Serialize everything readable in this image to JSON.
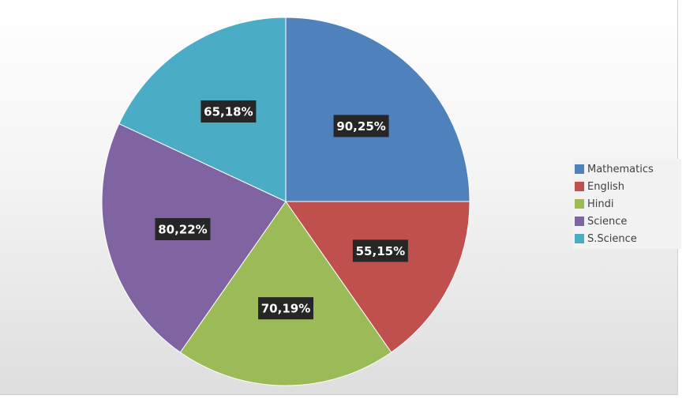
{
  "chart_data": {
    "type": "pie",
    "title": "",
    "start_angle_deg": 0,
    "direction": "clockwise",
    "slices": [
      {
        "name": "Mathematics",
        "value": 90.25,
        "label": "90,25%",
        "color": "#4f81bd"
      },
      {
        "name": "English",
        "value": 55.15,
        "label": "55,15%",
        "color": "#c0504d"
      },
      {
        "name": "Hindi",
        "value": 70.19,
        "label": "70,19%",
        "color": "#9bbb59"
      },
      {
        "name": "Science",
        "value": 80.22,
        "label": "80,22%",
        "color": "#8064a2"
      },
      {
        "name": "S.Science",
        "value": 65.18,
        "label": "65,18%",
        "color": "#4bacc6"
      }
    ],
    "legend_position": "right",
    "data_label_style": "dark box, white bold text"
  }
}
